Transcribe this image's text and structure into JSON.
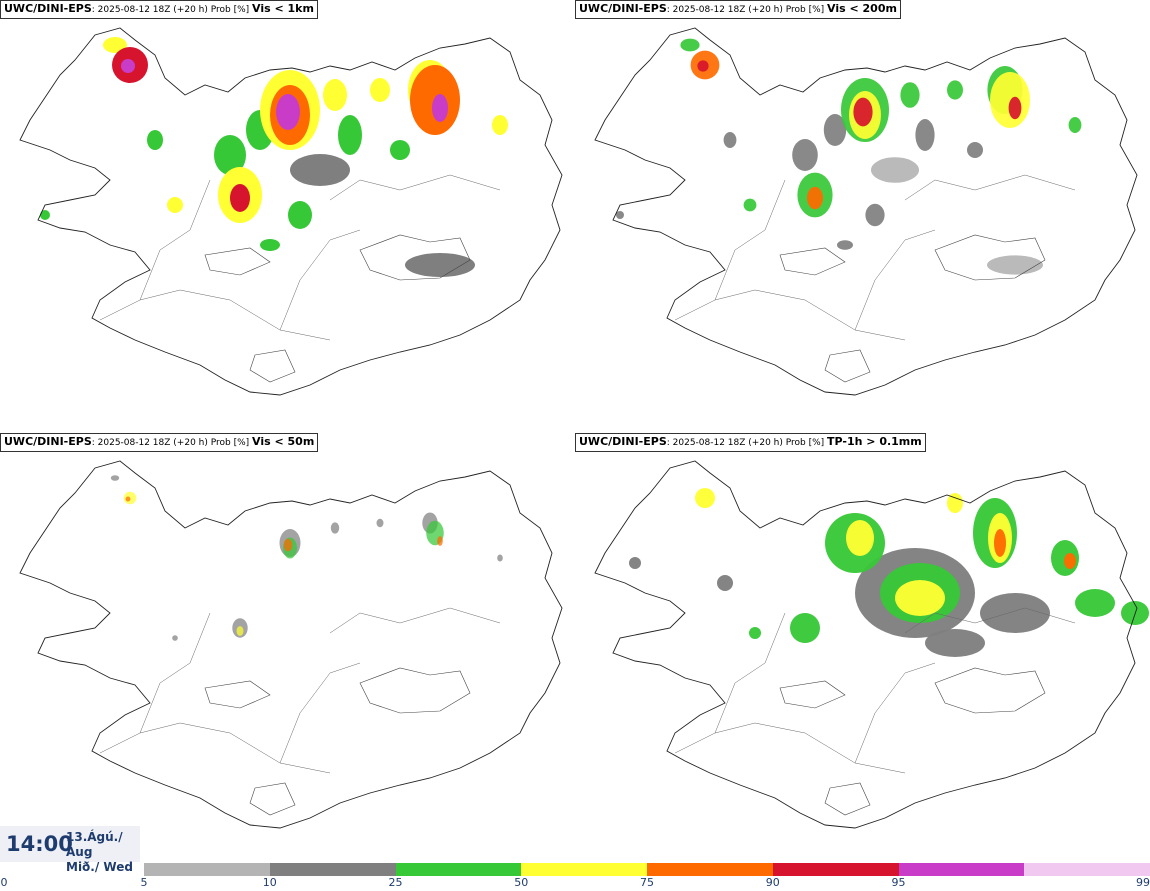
{
  "panels": [
    {
      "model": "UWC/DINI-EPS",
      "meta": ": 2025-08-12 18Z (+20 h) Prob [%] ",
      "variable": "Vis < 1km",
      "intensity": 1.0
    },
    {
      "model": "UWC/DINI-EPS",
      "meta": ": 2025-08-12 18Z (+20 h) Prob [%] ",
      "variable": "Vis < 200m",
      "intensity": 0.8
    },
    {
      "model": "UWC/DINI-EPS",
      "meta": ": 2025-08-12 18Z (+20 h) Prob [%] ",
      "variable": "Vis < 50m",
      "intensity": 0.3
    },
    {
      "model": "UWC/DINI-EPS",
      "meta": ": 2025-08-12 18Z (+20 h) Prob [%] ",
      "variable": "TP-1h > 0.1mm",
      "intensity": 0.9
    }
  ],
  "valid_time": {
    "time": "14:00",
    "date_line1": "13.Ágú./ Aug",
    "date_line2": "Mið./ Wed"
  },
  "legend": {
    "ticks": [
      "0",
      "5",
      "10",
      "25",
      "50",
      "75",
      "90",
      "95",
      "99"
    ],
    "colors": [
      "#b4b4b4",
      "#7f7f7f",
      "#37c837",
      "#ffff33",
      "#ff6a00",
      "#d7142d",
      "#c83cc8",
      "#f0c8f0"
    ]
  }
}
